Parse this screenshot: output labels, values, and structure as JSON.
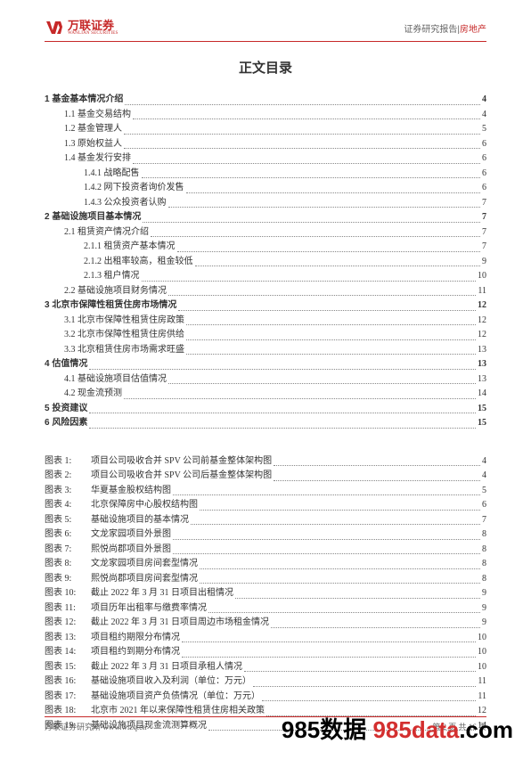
{
  "header": {
    "logo_cn": "万联证券",
    "logo_en": "WANLIAN SECURITIES",
    "report_type": "证券研究报告",
    "category": "房地产"
  },
  "toc_title": "正文目录",
  "toc": [
    {
      "lvl": 1,
      "bold": true,
      "label": "1 基金基本情况介绍",
      "pg": "4"
    },
    {
      "lvl": 2,
      "label": "1.1 基金交易结构",
      "pg": "4"
    },
    {
      "lvl": 2,
      "label": "1.2 基金管理人",
      "pg": "5"
    },
    {
      "lvl": 2,
      "label": "1.3 原始权益人",
      "pg": "6"
    },
    {
      "lvl": 2,
      "label": "1.4 基金发行安排",
      "pg": "6"
    },
    {
      "lvl": 3,
      "label": "1.4.1 战略配售",
      "pg": "6"
    },
    {
      "lvl": 3,
      "label": "1.4.2 网下投资者询价发售",
      "pg": "6"
    },
    {
      "lvl": 3,
      "label": "1.4.3 公众投资者认购",
      "pg": "7"
    },
    {
      "lvl": 1,
      "bold": true,
      "label": "2 基础设施项目基本情况",
      "pg": "7"
    },
    {
      "lvl": 2,
      "label": "2.1 租赁资产情况介绍",
      "pg": "7"
    },
    {
      "lvl": 3,
      "label": "2.1.1 租赁资产基本情况",
      "pg": "7"
    },
    {
      "lvl": 3,
      "label": "2.1.2 出租率较高，租金较低",
      "pg": "9"
    },
    {
      "lvl": 3,
      "label": "2.1.3 租户情况",
      "pg": "10"
    },
    {
      "lvl": 2,
      "label": "2.2 基础设施项目财务情况",
      "pg": "11"
    },
    {
      "lvl": 1,
      "bold": true,
      "label": "3 北京市保障性租赁住房市场情况",
      "pg": "12"
    },
    {
      "lvl": 2,
      "label": "3.1 北京市保障性租赁住房政策",
      "pg": "12"
    },
    {
      "lvl": 2,
      "label": "3.2 北京市保障性租赁住房供给",
      "pg": "12"
    },
    {
      "lvl": 2,
      "label": "3.3 北京租赁住房市场需求旺盛",
      "pg": "13"
    },
    {
      "lvl": 1,
      "bold": true,
      "label": "4 估值情况",
      "pg": "13"
    },
    {
      "lvl": 2,
      "label": "4.1 基础设施项目估值情况",
      "pg": "13"
    },
    {
      "lvl": 2,
      "label": "4.2 现金流预测",
      "pg": "14"
    },
    {
      "lvl": 1,
      "bold": true,
      "label": "5 投资建议",
      "pg": "15"
    },
    {
      "lvl": 1,
      "bold": true,
      "label": "6 风险因素",
      "pg": "15"
    }
  ],
  "figures": [
    {
      "no": "图表 1:",
      "title": "项目公司吸收合并 SPV 公司前基金整体架构图",
      "pg": "4"
    },
    {
      "no": "图表 2:",
      "title": "项目公司吸收合并 SPV 公司后基金整体架构图",
      "pg": "4"
    },
    {
      "no": "图表 3:",
      "title": "华夏基金股权结构图",
      "pg": "5"
    },
    {
      "no": "图表 4:",
      "title": "北京保障房中心股权结构图",
      "pg": "6"
    },
    {
      "no": "图表 5:",
      "title": "基础设施项目的基本情况",
      "pg": "7"
    },
    {
      "no": "图表 6:",
      "title": "文龙家园项目外景图",
      "pg": "8"
    },
    {
      "no": "图表 7:",
      "title": "熙悦尚郡项目外景图",
      "pg": "8"
    },
    {
      "no": "图表 8:",
      "title": "文龙家园项目房间套型情况",
      "pg": "8"
    },
    {
      "no": "图表 9:",
      "title": "熙悦尚郡项目房间套型情况",
      "pg": "8"
    },
    {
      "no": "图表 10:",
      "title": "截止 2022 年 3 月 31 日项目出租情况",
      "pg": "9"
    },
    {
      "no": "图表 11:",
      "title": "项目历年出租率与缴费率情况",
      "pg": "9"
    },
    {
      "no": "图表 12:",
      "title": "截止 2022 年 3 月 31 日项目周边市场租金情况",
      "pg": "9"
    },
    {
      "no": "图表 13:",
      "title": "项目租约期限分布情况",
      "pg": "10"
    },
    {
      "no": "图表 14:",
      "title": "项目租约到期分布情况",
      "pg": "10"
    },
    {
      "no": "图表 15:",
      "title": "截止 2022 年 3 月 31 日项目承租人情况",
      "pg": "10"
    },
    {
      "no": "图表 16:",
      "title": "基础设施项目收入及利润（单位：万元）",
      "pg": "11"
    },
    {
      "no": "图表 17:",
      "title": "基础设施项目资产负债情况（单位：万元）",
      "pg": "11"
    },
    {
      "no": "图表 18:",
      "title": "北京市 2021 年以来保障性租赁住房相关政策",
      "pg": "12"
    },
    {
      "no": "图表 19:",
      "title": "基础设施项目现金流测算概况",
      "pg": "14"
    }
  ],
  "footer": {
    "left": "万联证券研究所  www.wlzq.cn",
    "right": "第 2 页 共 16 页"
  },
  "watermark": {
    "a": "985数据 ",
    "b": "985data",
    "c": ".com"
  }
}
